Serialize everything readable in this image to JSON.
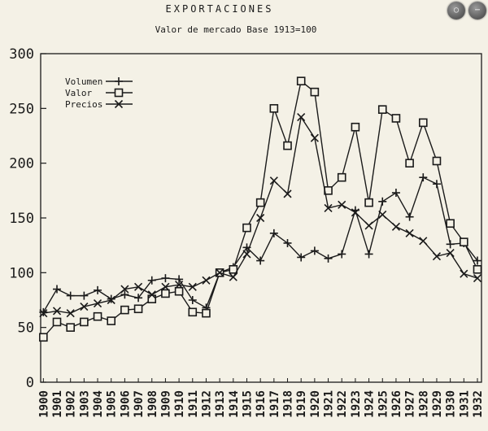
{
  "page": {
    "title": "EXPORTACIONES",
    "subtitle": "Valor de mercado   Base 1913=100"
  },
  "viewer": {
    "zoom_icon": "zoom-icon",
    "grid_icon": "grid-icon"
  },
  "chart_data": {
    "type": "line",
    "title": "EXPORTACIONES",
    "subtitle": "Valor de mercado   Base 1913=100",
    "xlabel": "",
    "ylabel": "",
    "ylim": [
      0,
      300
    ],
    "yticks": [
      0,
      50,
      100,
      150,
      200,
      250,
      300
    ],
    "grid": false,
    "legend_position": "top-left",
    "x": [
      "1900",
      "1901",
      "1902",
      "1903",
      "1904",
      "1905",
      "1906",
      "1907",
      "1908",
      "1909",
      "1910",
      "1911",
      "1912",
      "1913",
      "1914",
      "1915",
      "1916",
      "1917",
      "1918",
      "1919",
      "1920",
      "1921",
      "1922",
      "1923",
      "1924",
      "1925",
      "1926",
      "1927",
      "1928",
      "1929",
      "1930",
      "1931",
      "1932"
    ],
    "series": [
      {
        "name": "Volumen",
        "marker": "plus",
        "values": [
          64,
          85,
          79,
          79,
          84,
          76,
          80,
          77,
          93,
          95,
          94,
          75,
          68,
          100,
          105,
          123,
          111,
          136,
          127,
          114,
          120,
          113,
          117,
          157,
          117,
          165,
          173,
          151,
          187,
          181,
          126,
          127,
          111
        ]
      },
      {
        "name": "Valor",
        "marker": "square",
        "values": [
          41,
          55,
          50,
          55,
          60,
          56,
          66,
          67,
          76,
          81,
          83,
          64,
          63,
          100,
          103,
          141,
          164,
          250,
          216,
          275,
          265,
          175,
          187,
          233,
          164,
          249,
          241,
          200,
          237,
          202,
          145,
          128,
          103
        ]
      },
      {
        "name": "Precios",
        "marker": "x",
        "values": [
          63,
          65,
          63,
          69,
          72,
          75,
          85,
          87,
          80,
          87,
          89,
          87,
          93,
          100,
          96,
          117,
          150,
          184,
          172,
          242,
          223,
          159,
          162,
          155,
          143,
          153,
          142,
          136,
          129,
          115,
          118,
          99,
          95
        ]
      }
    ]
  }
}
